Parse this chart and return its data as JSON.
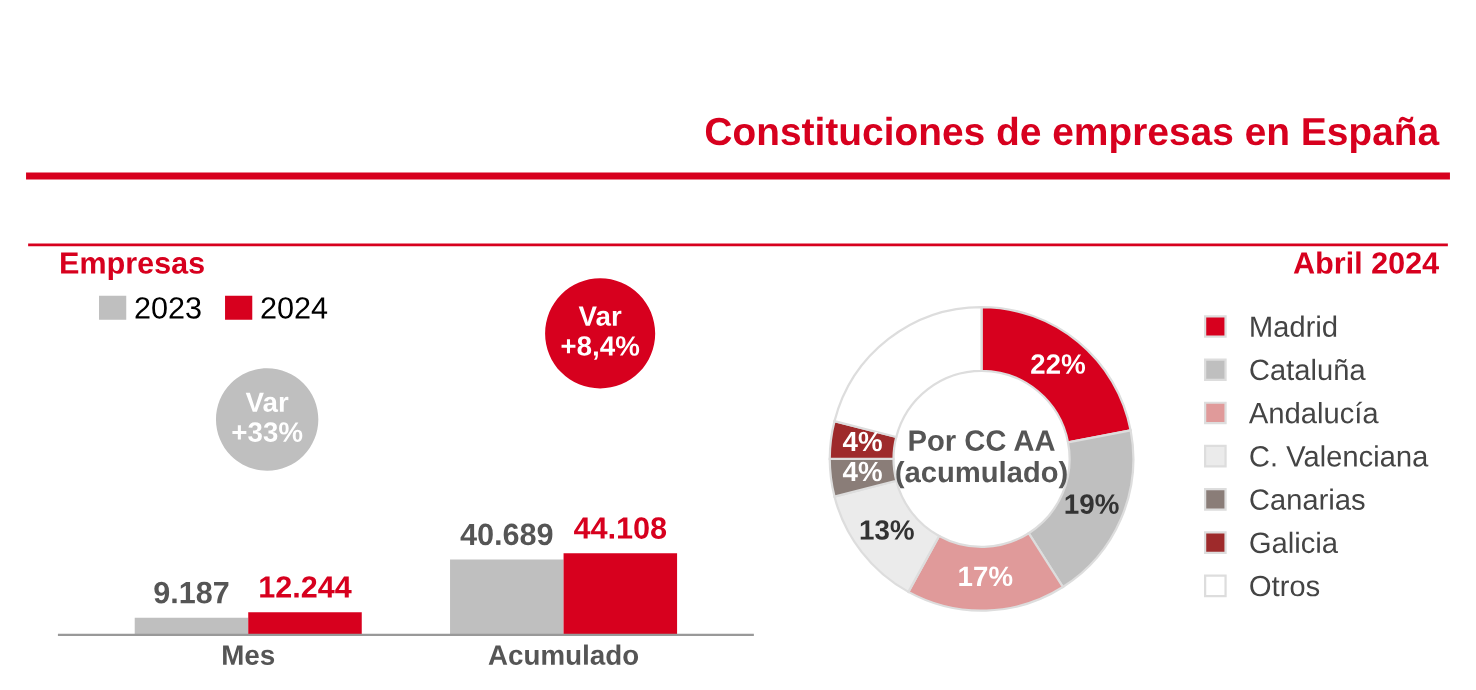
{
  "chart_data": [
    {
      "type": "bar",
      "subtitle": "Empresas",
      "categories": [
        "Mes",
        "Acumulado"
      ],
      "legend": "top left",
      "series": [
        {
          "name": "2023",
          "color": "#bfbfbf",
          "values": [
            9187,
            40689
          ],
          "value_labels": [
            "9.187",
            "40.689"
          ]
        },
        {
          "name": "2024",
          "color": "#d7001e",
          "values": [
            12244,
            44108
          ],
          "value_labels": [
            "12.244",
            "44.108"
          ]
        }
      ],
      "annotations": [
        "Var\n+33%",
        "Var\n+8,4%"
      ]
    },
    {
      "type": "donut",
      "title": "Constituciones de empresas en España",
      "subtitle": "Abril 2024",
      "categories": [
        "Madrid",
        "Cataluña",
        "Andalucía",
        "C. Valenciana",
        "Canarias",
        "Galicia",
        "Otros"
      ],
      "values": [
        22,
        19,
        17,
        13,
        4,
        4,
        21
      ],
      "value_labels": [
        "22%",
        "19%",
        "17%",
        "13%",
        "4%",
        "4%",
        null
      ],
      "colors": [
        "#d7001e",
        "#bfbfbf",
        "#e09a9a",
        "#ebebeb",
        "#8a7d78",
        "#9e2a2b",
        "#ffffff"
      ],
      "annotations": [
        "Por CC AA\n(acumulado)"
      ],
      "legend": "right"
    }
  ]
}
